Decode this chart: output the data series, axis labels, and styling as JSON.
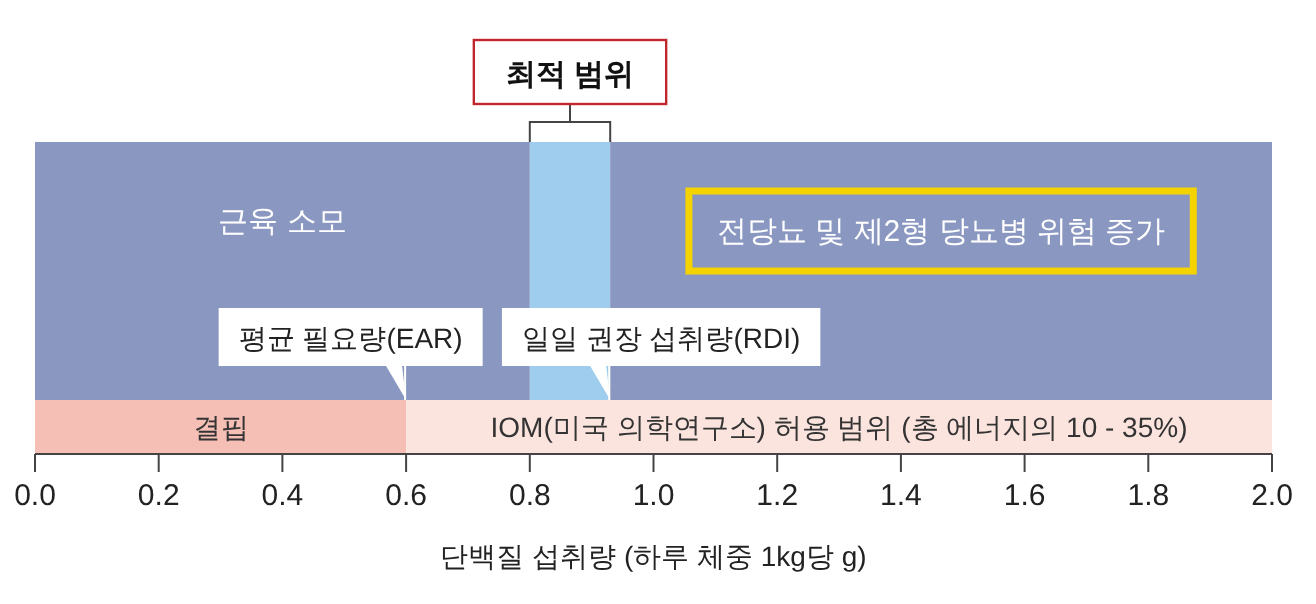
{
  "chart_data": {
    "type": "bar",
    "orientation": "horizontal",
    "stacked": true,
    "categories": [
      null
    ],
    "xlabel": "단백질 섭취량 (하루 체중 1kg당 g)",
    "xlim": [
      0,
      2
    ],
    "xticks": [
      {
        "value": 0,
        "label": "0.0"
      },
      0.2,
      0.4,
      0.6,
      0.8,
      {
        "value": 1,
        "label": "1.0"
      },
      1.2,
      1.4,
      1.6,
      1.8,
      {
        "value": 2,
        "label": "2.0"
      }
    ],
    "series": [
      {
        "name": "근육 소모",
        "color": "#8a98c1",
        "values": [
          0.8
        ]
      },
      {
        "name": "최적 범위",
        "color": "#9fcdee",
        "values": [
          0.13
        ]
      },
      {
        "name": "전당뇨 및 제2형 당뇨병 위험 증가",
        "color": "#8a98c1",
        "values": [
          1.07
        ]
      }
    ],
    "bands": [
      {
        "axis": "x",
        "from": 0,
        "to": 0.6,
        "label": "결핍",
        "color": "#f5bfb5"
      },
      {
        "axis": "x",
        "from": 0.6,
        "to": 2,
        "label": "IOM(미국 의학연구소) 허용 범위 (총 에너지의 10 - 35%)",
        "color": "#fce4de"
      }
    ],
    "ref_lines": [
      {
        "axis": "x",
        "value": 0.6,
        "label": "평균 필요량(EAR)"
      },
      {
        "axis": "x",
        "value": 0.93,
        "label": "일일 권장 섭취량(RDI)"
      }
    ]
  }
}
